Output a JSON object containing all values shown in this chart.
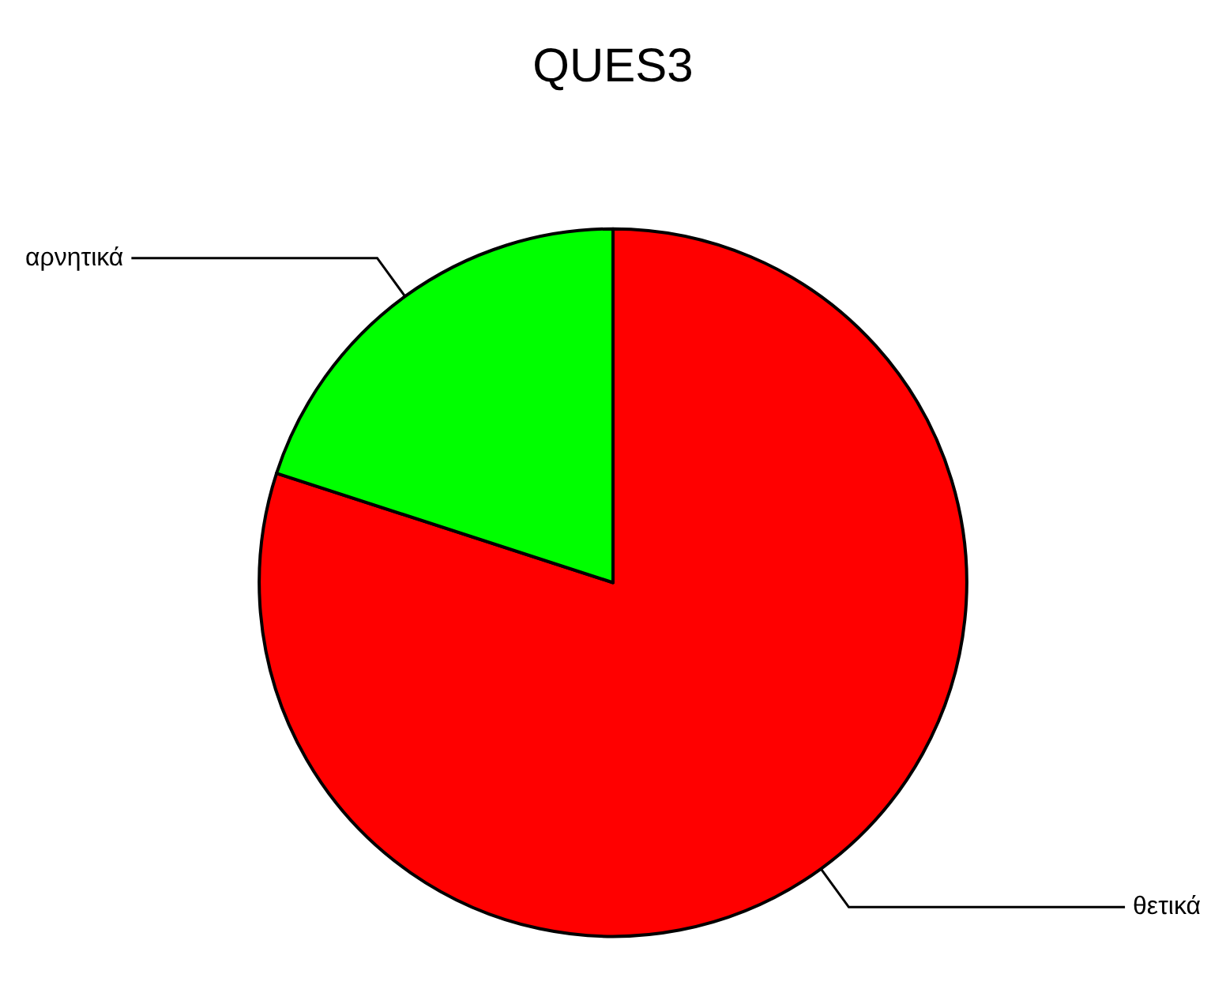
{
  "chart_data": {
    "type": "pie",
    "title": "QUES3",
    "categories": [
      "θετικά",
      "αρνητικά"
    ],
    "values": [
      80,
      20
    ],
    "colors": [
      "#ff0000",
      "#00ff00"
    ],
    "legend": false
  }
}
